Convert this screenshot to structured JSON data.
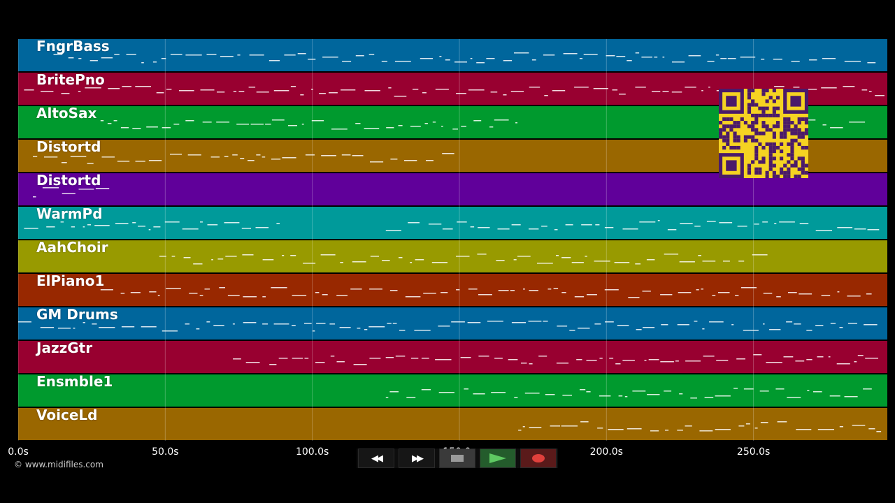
{
  "tracks": [
    {
      "name": "FngrBass",
      "color": "#00669c"
    },
    {
      "name": "BritePno",
      "color": "#980030"
    },
    {
      "name": "AltoSax",
      "color": "#009a2e"
    },
    {
      "name": "Distortd",
      "color": "#9a6700"
    },
    {
      "name": "Distortd",
      "color": "#60009a"
    },
    {
      "name": "WarmPd",
      "color": "#009a9a"
    },
    {
      "name": "AahChoir",
      "color": "#989a00"
    },
    {
      "name": "ElPiano1",
      "color": "#982800"
    },
    {
      "name": "GM Drums",
      "color": "#00669c"
    },
    {
      "name": "JazzGtr",
      "color": "#980030"
    },
    {
      "name": "Ensmble1",
      "color": "#009a2e"
    },
    {
      "name": "VoiceLd",
      "color": "#9a6700"
    }
  ],
  "timeline": {
    "ticks": [
      "0.0s",
      "50.0s",
      "100.0s",
      "150.0s",
      "200.0s",
      "250.0s"
    ],
    "tick_values": [
      0,
      50,
      100,
      150,
      200,
      250
    ],
    "range": [
      0,
      295.5
    ]
  },
  "footer": {
    "copyright": "© www.midifiles.com"
  },
  "transport": {
    "rewind_icon": "rewind-icon",
    "fast_forward_icon": "fast-forward-icon",
    "stop_icon": "stop-icon",
    "play_icon": "play-icon",
    "record_icon": "record-icon"
  },
  "colors": {
    "note": "#ffffff",
    "qr_background": "#f5d322",
    "qr_foreground": "#4a1a6a"
  }
}
